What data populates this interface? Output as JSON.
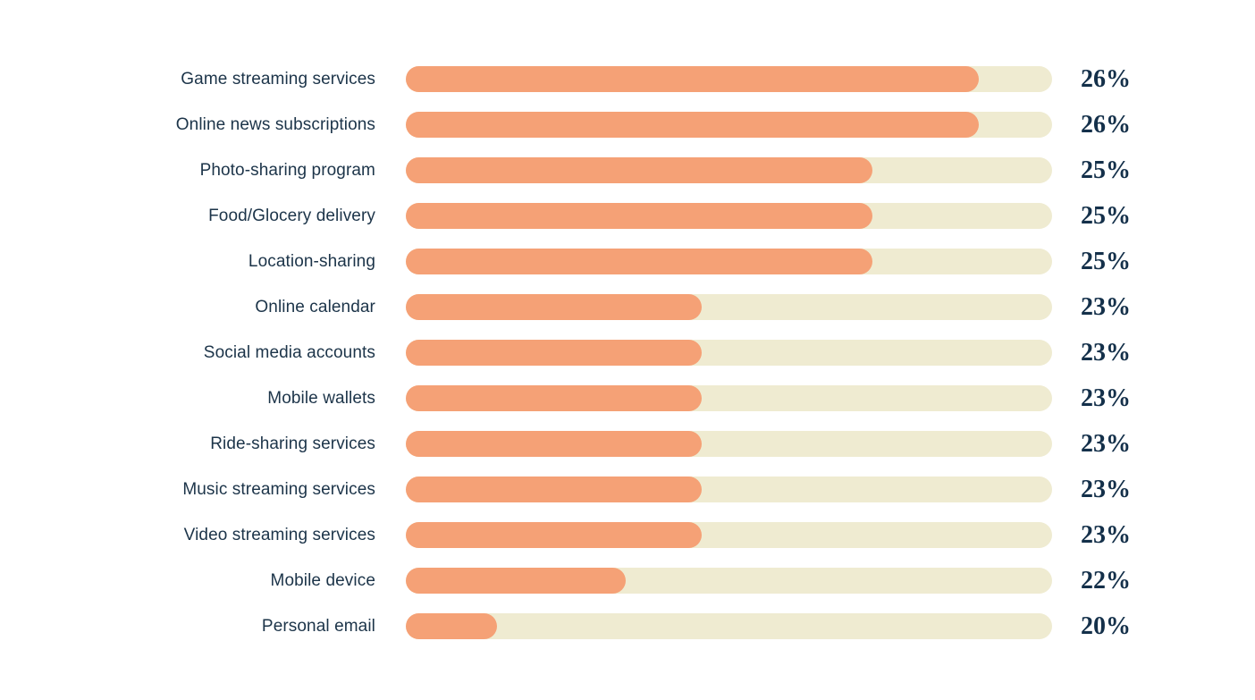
{
  "chart_data": {
    "type": "bar",
    "orientation": "horizontal",
    "title": "",
    "xlabel": "",
    "ylabel": "",
    "unit": "%",
    "grid": false,
    "legend": false,
    "categories": [
      "Game streaming services",
      "Online news subscriptions",
      "Photo-sharing program",
      "Food/Glocery delivery",
      "Location-sharing",
      "Online calendar",
      "Social media accounts",
      "Mobile wallets",
      "Ride-sharing services",
      "Music streaming services",
      "Video streaming services",
      "Mobile device",
      "Personal email"
    ],
    "values": [
      26,
      26,
      25,
      25,
      25,
      23,
      23,
      23,
      23,
      23,
      23,
      22,
      20
    ],
    "value_labels": [
      "26%",
      "26%",
      "25%",
      "25%",
      "25%",
      "23%",
      "23%",
      "23%",
      "23%",
      "23%",
      "23%",
      "22%",
      "20%"
    ],
    "bar_fill_fractions": [
      0.887,
      0.887,
      0.722,
      0.722,
      0.722,
      0.458,
      0.458,
      0.458,
      0.458,
      0.458,
      0.458,
      0.34,
      0.141
    ],
    "colors": {
      "bar_fill": "#F5A176",
      "bar_track": "#EFEBD1",
      "label_text": "#1C3449",
      "value_text": "#14304A",
      "background": "#FFFFFF"
    }
  }
}
